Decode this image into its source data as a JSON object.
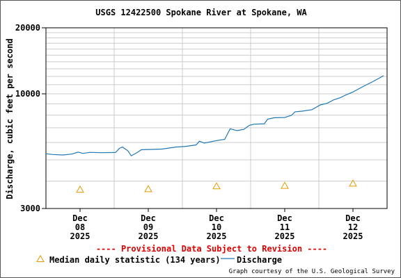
{
  "chart_data": {
    "type": "line",
    "title": "USGS 12422500 Spokane River at Spokane, WA",
    "ylabel": "Discharge, cubic feet per second",
    "xlabel": "",
    "y_scale": "log",
    "ylim": [
      3000,
      20000
    ],
    "y_ticks": [
      {
        "value": 3000,
        "label": "3000"
      },
      {
        "value": 10000,
        "label": "10000"
      },
      {
        "value": 20000,
        "label": "20000"
      }
    ],
    "x_range_days": [
      7.5,
      12.5
    ],
    "x_ticks": [
      {
        "day": 8,
        "label": [
          "Dec",
          "08",
          "2025"
        ]
      },
      {
        "day": 9,
        "label": [
          "Dec",
          "09",
          "2025"
        ]
      },
      {
        "day": 10,
        "label": [
          "Dec",
          "10",
          "2025"
        ]
      },
      {
        "day": 11,
        "label": [
          "Dec",
          "11",
          "2025"
        ]
      },
      {
        "day": 12,
        "label": [
          "Dec",
          "12",
          "2025"
        ]
      }
    ],
    "grid": true,
    "series": [
      {
        "name": "Discharge",
        "type": "line",
        "color": "#1f77b4",
        "points": [
          [
            7.5,
            5330
          ],
          [
            7.6,
            5290
          ],
          [
            7.75,
            5260
          ],
          [
            7.88,
            5310
          ],
          [
            7.97,
            5420
          ],
          [
            8.04,
            5350
          ],
          [
            8.15,
            5410
          ],
          [
            8.3,
            5390
          ],
          [
            8.52,
            5400
          ],
          [
            8.58,
            5650
          ],
          [
            8.62,
            5720
          ],
          [
            8.7,
            5500
          ],
          [
            8.75,
            5220
          ],
          [
            8.82,
            5360
          ],
          [
            8.9,
            5560
          ],
          [
            9.05,
            5580
          ],
          [
            9.2,
            5600
          ],
          [
            9.4,
            5720
          ],
          [
            9.55,
            5760
          ],
          [
            9.7,
            5850
          ],
          [
            9.75,
            6080
          ],
          [
            9.82,
            5960
          ],
          [
            10.0,
            6120
          ],
          [
            10.12,
            6200
          ],
          [
            10.17,
            6650
          ],
          [
            10.2,
            6930
          ],
          [
            10.3,
            6800
          ],
          [
            10.4,
            6880
          ],
          [
            10.48,
            7180
          ],
          [
            10.55,
            7270
          ],
          [
            10.7,
            7300
          ],
          [
            10.75,
            7670
          ],
          [
            10.85,
            7780
          ],
          [
            11.0,
            7800
          ],
          [
            11.1,
            7980
          ],
          [
            11.15,
            8280
          ],
          [
            11.25,
            8330
          ],
          [
            11.4,
            8470
          ],
          [
            11.52,
            8900
          ],
          [
            11.62,
            9050
          ],
          [
            11.72,
            9400
          ],
          [
            11.82,
            9620
          ],
          [
            11.9,
            9900
          ],
          [
            12.0,
            10200
          ],
          [
            12.1,
            10600
          ],
          [
            12.2,
            11000
          ],
          [
            12.3,
            11400
          ],
          [
            12.45,
            12100
          ]
        ]
      },
      {
        "name": "Median daily statistic (134 years)",
        "type": "marker",
        "marker": "triangle",
        "color": "#e69b00",
        "points": [
          [
            8,
            3650
          ],
          [
            9,
            3670
          ],
          [
            10,
            3780
          ],
          [
            11,
            3800
          ],
          [
            12,
            3890
          ]
        ]
      }
    ],
    "legend": {
      "placement": "bottom",
      "entries": [
        "Median daily statistic (134 years)",
        "Discharge"
      ]
    }
  },
  "footer": {
    "provisional_notice": "---- Provisional Data Subject to Revision ----",
    "courtesy": "Graph courtesy of the U.S. Geological Survey"
  },
  "colors": {
    "discharge_line": "#1f77b4",
    "median_marker": "#e69b00",
    "provisional_text": "#dd0000",
    "grid": "#cccccc"
  }
}
